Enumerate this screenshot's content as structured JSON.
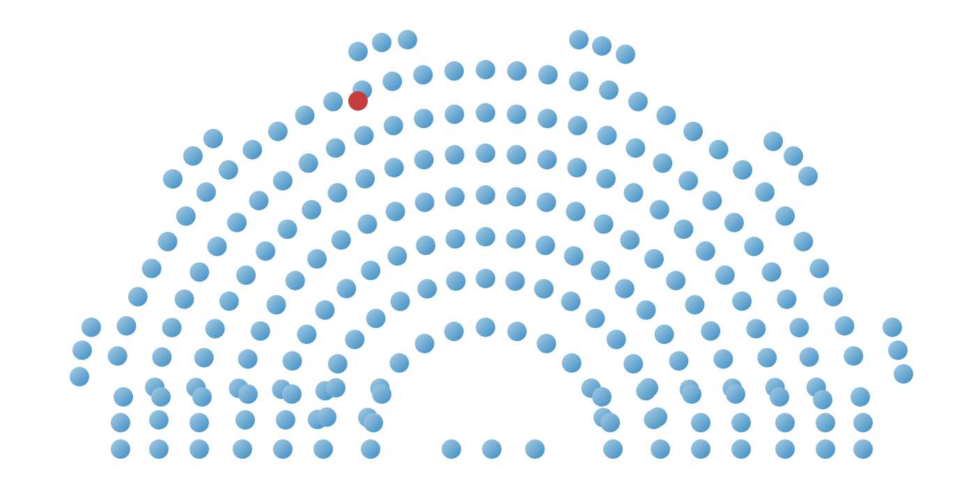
{
  "diagram": {
    "type": "parliament-seating",
    "seat_count": 282,
    "highlighted_seat_count": 1,
    "colors": {
      "background": "#ffffff",
      "seat_light": "#a9cde3",
      "seat_dark": "#3a8cc4",
      "highlight": "#c43c3c"
    }
  }
}
